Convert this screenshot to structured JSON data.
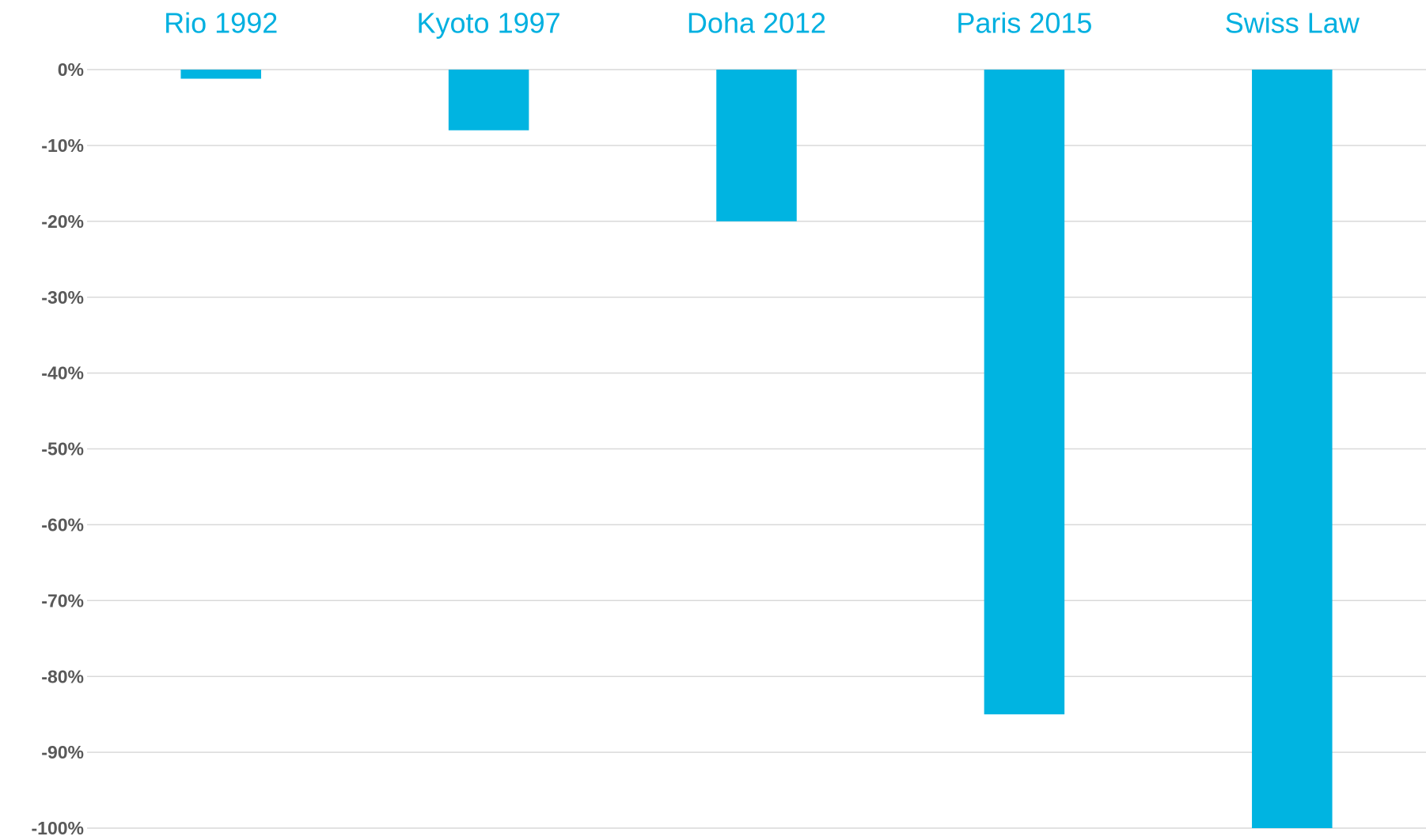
{
  "chart_data": {
    "type": "bar",
    "categories": [
      "Rio 1992",
      "Kyoto 1997",
      "Doha 2012",
      "Paris 2015",
      "Swiss Law"
    ],
    "values": [
      -1.2,
      -8,
      -20,
      -85,
      -100
    ],
    "color": "#00b4e1",
    "ylim": [
      -100,
      0
    ],
    "yticks": [
      {
        "value": 0,
        "label": "0%"
      },
      {
        "value": -10,
        "label": "-10%"
      },
      {
        "value": -20,
        "label": "-20%"
      },
      {
        "value": -30,
        "label": "-30%"
      },
      {
        "value": -40,
        "label": "-40%"
      },
      {
        "value": -50,
        "label": "-50%"
      },
      {
        "value": -60,
        "label": "-60%"
      },
      {
        "value": -70,
        "label": "-70%"
      },
      {
        "value": -80,
        "label": "-80%"
      },
      {
        "value": -90,
        "label": "-90%"
      },
      {
        "value": -100,
        "label": "-100%"
      }
    ],
    "grid": true
  }
}
